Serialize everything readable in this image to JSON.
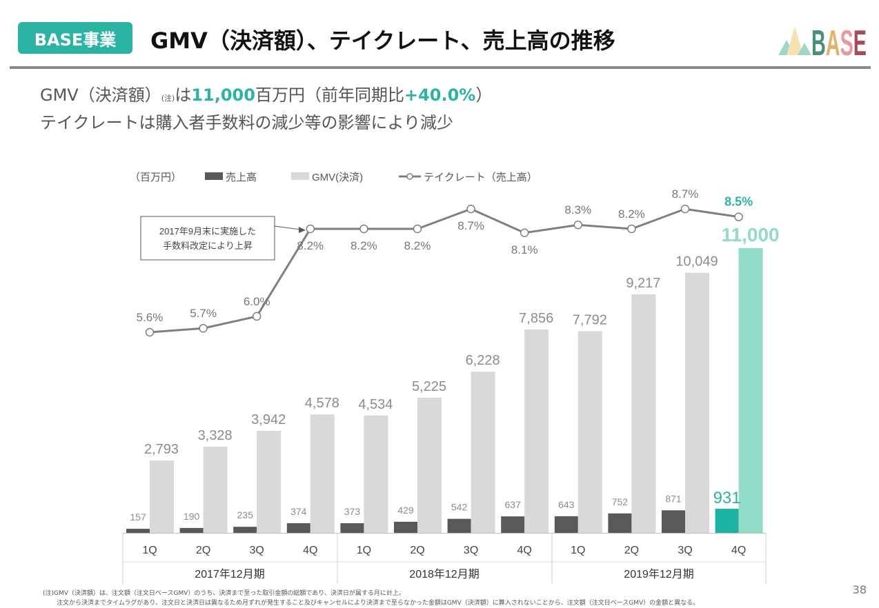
{
  "header": {
    "badge": "BASE事業",
    "title": "GMV（決済額）、テイクレート、売上高の推移",
    "logo_text": "BASE"
  },
  "summary": {
    "line1_a": "GMV（決済額）",
    "line1_note": "(注)",
    "line1_b": "は",
    "line1_value": "11,000",
    "line1_c": "百万円（前年同期比",
    "line1_growth": "+40.0%",
    "line1_d": "）",
    "line2": "テイクレートは購入者手数料の減少等の影響により減少"
  },
  "chart_data": {
    "type": "bar+line",
    "unit_label": "（百万円）",
    "legend": [
      "売上高",
      "GMV(決済)",
      "テイクレート（売上高）"
    ],
    "legend_placement": "top-left",
    "categories": [
      "1Q",
      "2Q",
      "3Q",
      "4Q",
      "1Q",
      "2Q",
      "3Q",
      "4Q",
      "1Q",
      "2Q",
      "3Q",
      "4Q"
    ],
    "fiscal_years": [
      "2017年12月期",
      "2018年12月期",
      "2019年12月期"
    ],
    "series": [
      {
        "name": "売上高",
        "type": "bar",
        "values": [
          157,
          190,
          235,
          374,
          373,
          429,
          542,
          637,
          643,
          752,
          871,
          931
        ],
        "labels": [
          "157",
          "190",
          "235",
          "374",
          "373",
          "429",
          "542",
          "637",
          "643",
          "752",
          "871",
          "931"
        ]
      },
      {
        "name": "GMV(決済)",
        "type": "bar",
        "values": [
          2793,
          3328,
          3942,
          4578,
          4534,
          5225,
          6228,
          7856,
          7792,
          9217,
          10049,
          11000
        ],
        "labels": [
          "2,793",
          "3,328",
          "3,942",
          "4,578",
          "4,534",
          "5,225",
          "6,228",
          "7,856",
          "7,792",
          "9,217",
          "10,049",
          "11,000"
        ]
      },
      {
        "name": "テイクレート（売上高）",
        "type": "line",
        "values": [
          5.6,
          5.7,
          6.0,
          8.2,
          8.2,
          8.2,
          8.7,
          8.1,
          8.3,
          8.2,
          8.7,
          8.5
        ],
        "labels": [
          "5.6%",
          "5.7%",
          "6.0%",
          "8.2%",
          "8.2%",
          "8.2%",
          "8.7%",
          "8.1%",
          "8.3%",
          "8.2%",
          "8.7%",
          "8.5%"
        ]
      }
    ],
    "annotation": {
      "line1": "2017年9月末に実施した",
      "line2": "手数料改定により上昇"
    },
    "colors": {
      "sales": "#595959",
      "gmv": "#d9d9d9",
      "sales_highlight": "#1db3a3",
      "gmv_highlight": "#8fdcc8",
      "line": "#7f7f7f",
      "label": "#8c8c8c",
      "accent": "#2bb3a3"
    },
    "highlight_index": 11
  },
  "footnotes": {
    "line1": "(注)GMV（決済額）は、注文額（注文日ベースGMV）のうち、決済まで至った取引金額の総額であり、決済日が属する月に計上。",
    "line2": "注文から決済までタイムラグがあり、注文日と決済日は異なるため月ずれが発生すること及びキャンセルにより決済まで至らなかった金額はGMV（決済額）に算入されないことから、注文額（注文日ベースGMV）の金額と異なる。"
  },
  "page_number": "38"
}
